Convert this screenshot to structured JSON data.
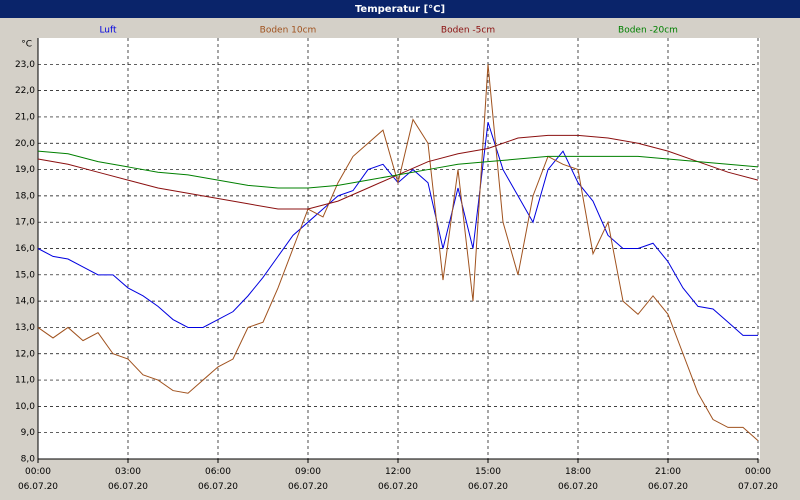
{
  "chart_data": {
    "type": "line",
    "title": "Temperatur [°C]",
    "y_unit": "°C",
    "xlim": [
      0,
      24
    ],
    "ylim": [
      8,
      24
    ],
    "grid": true,
    "xticks": [
      {
        "value": 0,
        "label": "00:00\n06.07.20"
      },
      {
        "value": 3,
        "label": "03:00\n06.07.20"
      },
      {
        "value": 6,
        "label": "06:00\n06.07.20"
      },
      {
        "value": 9,
        "label": "09:00\n06.07.20"
      },
      {
        "value": 12,
        "label": "12:00\n06.07.20"
      },
      {
        "value": 15,
        "label": "15:00\n06.07.20"
      },
      {
        "value": 18,
        "label": "18:00\n06.07.20"
      },
      {
        "value": 21,
        "label": "21:00\n06.07.20"
      },
      {
        "value": 24,
        "label": "00:00\n07.07.20"
      }
    ],
    "yticks": [
      {
        "value": 8,
        "label": "8,0"
      },
      {
        "value": 9,
        "label": "9,0"
      },
      {
        "value": 10,
        "label": "10,0"
      },
      {
        "value": 11,
        "label": "11,0"
      },
      {
        "value": 12,
        "label": "12,0"
      },
      {
        "value": 13,
        "label": "13,0"
      },
      {
        "value": 14,
        "label": "14,0"
      },
      {
        "value": 15,
        "label": "15,0"
      },
      {
        "value": 16,
        "label": "16,0"
      },
      {
        "value": 17,
        "label": "17,0"
      },
      {
        "value": 18,
        "label": "18,0"
      },
      {
        "value": 19,
        "label": "19,0"
      },
      {
        "value": 20,
        "label": "20,0"
      },
      {
        "value": 21,
        "label": "21,0"
      },
      {
        "value": 22,
        "label": "22,0"
      },
      {
        "value": 23,
        "label": "23,0"
      }
    ],
    "series": [
      {
        "name": "Luft",
        "color": "#0000e0",
        "x": [
          0,
          0.5,
          1,
          1.5,
          2,
          2.5,
          3,
          3.5,
          4,
          4.5,
          5,
          5.5,
          6,
          6.5,
          7,
          7.5,
          8,
          8.5,
          9,
          9.5,
          10,
          10.5,
          11,
          11.5,
          12,
          12.5,
          13,
          13.5,
          14,
          14.5,
          15,
          15.5,
          16,
          16.5,
          17,
          17.5,
          18,
          18.5,
          19,
          19.5,
          20,
          20.5,
          21,
          21.5,
          22,
          22.5,
          23,
          23.5,
          24
        ],
        "values": [
          16.0,
          15.7,
          15.6,
          15.3,
          15.0,
          15.0,
          14.5,
          14.2,
          13.8,
          13.3,
          13.0,
          13.0,
          13.3,
          13.6,
          14.2,
          14.9,
          15.7,
          16.5,
          17.0,
          17.5,
          18.0,
          18.2,
          19.0,
          19.2,
          18.5,
          19.0,
          18.5,
          16.0,
          18.3,
          16.0,
          20.8,
          19.0,
          18.0,
          17.0,
          19.0,
          19.7,
          18.5,
          17.8,
          16.5,
          16.0,
          16.0,
          16.2,
          15.5,
          14.5,
          13.8,
          13.7,
          13.2,
          12.7,
          12.7
        ]
      },
      {
        "name": "Boden 10cm",
        "color": "#a0521e",
        "x": [
          0,
          0.5,
          1,
          1.5,
          2,
          2.5,
          3,
          3.5,
          4,
          4.5,
          5,
          5.5,
          6,
          6.5,
          7,
          7.5,
          8,
          8.5,
          9,
          9.5,
          10,
          10.5,
          11,
          11.5,
          12,
          12.5,
          13,
          13.5,
          14,
          14.5,
          15,
          15.5,
          16,
          16.5,
          17,
          17.5,
          18,
          18.5,
          19,
          19.5,
          20,
          20.5,
          21,
          21.5,
          22,
          22.5,
          23,
          23.5,
          24
        ],
        "values": [
          13.0,
          12.6,
          13.0,
          12.5,
          12.8,
          12.0,
          11.8,
          11.2,
          11.0,
          10.6,
          10.5,
          11.0,
          11.5,
          11.8,
          13.0,
          13.2,
          14.5,
          16.0,
          17.5,
          17.2,
          18.5,
          19.5,
          20.0,
          20.5,
          18.5,
          20.9,
          20.0,
          14.8,
          19.0,
          14.0,
          23.0,
          17.0,
          15.0,
          18.0,
          19.5,
          19.2,
          19.0,
          15.8,
          17.0,
          14.0,
          13.5,
          14.2,
          13.5,
          12.0,
          10.5,
          9.5,
          9.2,
          9.2,
          8.7
        ]
      },
      {
        "name": "Boden -5cm",
        "color": "#8b1010",
        "x": [
          0,
          1,
          2,
          3,
          4,
          5,
          6,
          7,
          8,
          9,
          10,
          11,
          12,
          13,
          14,
          15,
          16,
          17,
          18,
          19,
          20,
          21,
          22,
          23,
          24
        ],
        "values": [
          19.4,
          19.2,
          18.9,
          18.6,
          18.3,
          18.1,
          17.9,
          17.7,
          17.5,
          17.5,
          17.8,
          18.3,
          18.8,
          19.3,
          19.6,
          19.8,
          20.2,
          20.3,
          20.3,
          20.2,
          20.0,
          19.7,
          19.3,
          18.9,
          18.6
        ]
      },
      {
        "name": "Boden -20cm",
        "color": "#008000",
        "x": [
          0,
          1,
          2,
          3,
          4,
          5,
          6,
          7,
          8,
          9,
          10,
          11,
          12,
          13,
          14,
          15,
          16,
          17,
          18,
          19,
          20,
          21,
          22,
          23,
          24
        ],
        "values": [
          19.7,
          19.6,
          19.3,
          19.1,
          18.9,
          18.8,
          18.6,
          18.4,
          18.3,
          18.3,
          18.4,
          18.6,
          18.8,
          19.0,
          19.2,
          19.3,
          19.4,
          19.5,
          19.5,
          19.5,
          19.5,
          19.4,
          19.3,
          19.2,
          19.1
        ]
      }
    ]
  }
}
